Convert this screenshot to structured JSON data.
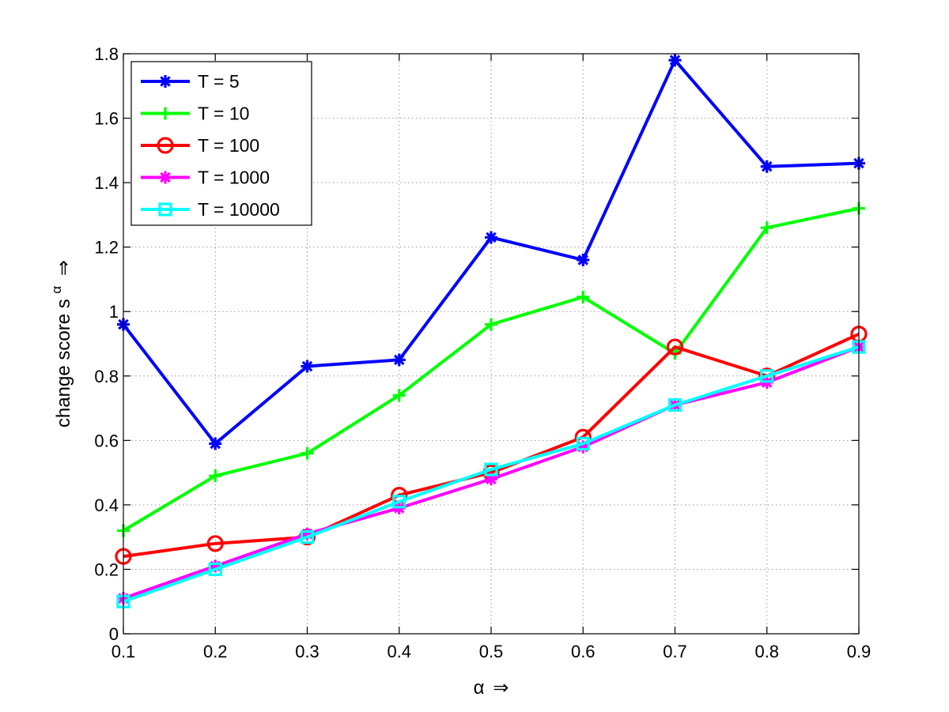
{
  "chart_data": {
    "type": "line",
    "xlabel_symbol": "α",
    "xlabel_arrow": "⇒",
    "ylabel_text": "change score s",
    "ylabel_sup": "α",
    "ylabel_arrow": "⇒",
    "xlim": [
      0.1,
      0.9
    ],
    "ylim": [
      0,
      1.8
    ],
    "x_ticks": [
      "0.1",
      "0.2",
      "0.3",
      "0.4",
      "0.5",
      "0.6",
      "0.7",
      "0.8",
      "0.9"
    ],
    "y_ticks": [
      "0",
      "0.2",
      "0.4",
      "0.6",
      "0.8",
      "1",
      "1.2",
      "1.4",
      "1.6",
      "1.8"
    ],
    "grid": true,
    "legend_position": "top-left",
    "x": [
      0.1,
      0.2,
      0.3,
      0.4,
      0.5,
      0.6,
      0.7,
      0.8,
      0.9
    ],
    "series": [
      {
        "name": "T = 5",
        "color": "#0000ff",
        "marker": "asterisk",
        "values": [
          0.96,
          0.59,
          0.83,
          0.85,
          1.23,
          1.16,
          1.78,
          1.45,
          1.46
        ]
      },
      {
        "name": "T = 10",
        "color": "#00ff00",
        "marker": "plus",
        "values": [
          0.32,
          0.49,
          0.56,
          0.74,
          0.96,
          1.045,
          0.87,
          1.26,
          1.32
        ]
      },
      {
        "name": "T = 100",
        "color": "#ff0000",
        "marker": "circle",
        "values": [
          0.24,
          0.28,
          0.3,
          0.43,
          0.5,
          0.61,
          0.89,
          0.8,
          0.93
        ]
      },
      {
        "name": "T = 1000",
        "color": "#ff00ff",
        "marker": "asterisk",
        "values": [
          0.11,
          0.21,
          0.31,
          0.39,
          0.48,
          0.58,
          0.71,
          0.78,
          0.89
        ]
      },
      {
        "name": "T = 10000",
        "color": "#00ffff",
        "marker": "square",
        "values": [
          0.1,
          0.2,
          0.3,
          0.41,
          0.51,
          0.59,
          0.71,
          0.8,
          0.89
        ]
      }
    ]
  }
}
